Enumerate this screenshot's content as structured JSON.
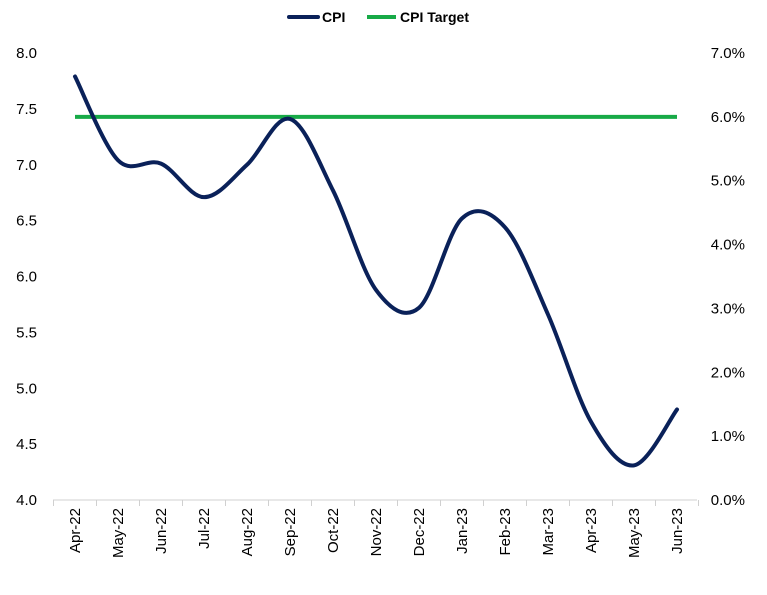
{
  "chart_data": {
    "type": "line",
    "categories": [
      "Apr-22",
      "May-22",
      "Jun-22",
      "Jul-22",
      "Aug-22",
      "Sep-22",
      "Oct-22",
      "Nov-22",
      "Dec-22",
      "Jan-23",
      "Feb-23",
      "Mar-23",
      "Apr-23",
      "May-23",
      "Jun-23"
    ],
    "series": [
      {
        "name": "CPI",
        "axis": "left",
        "color": "#0a2159",
        "values": [
          7.79,
          7.04,
          7.01,
          6.71,
          7.0,
          7.41,
          6.77,
          5.88,
          5.72,
          6.52,
          6.44,
          5.66,
          4.7,
          4.31,
          4.81
        ]
      },
      {
        "name": "CPI Target",
        "axis": "right",
        "color": "#17aa47",
        "values": [
          6.0,
          6.0,
          6.0,
          6.0,
          6.0,
          6.0,
          6.0,
          6.0,
          6.0,
          6.0,
          6.0,
          6.0,
          6.0,
          6.0,
          6.0
        ]
      }
    ],
    "y_left": {
      "min": 4.0,
      "max": 8.0,
      "ticks": [
        "4.0",
        "4.5",
        "5.0",
        "5.5",
        "6.0",
        "6.5",
        "7.0",
        "7.5",
        "8.0"
      ]
    },
    "y_right": {
      "min": 0,
      "max": 7,
      "ticks": [
        "0.0%",
        "1.0%",
        "2.0%",
        "3.0%",
        "4.0%",
        "5.0%",
        "6.0%",
        "7.0%"
      ]
    },
    "legend_position": "top",
    "grid": false
  }
}
